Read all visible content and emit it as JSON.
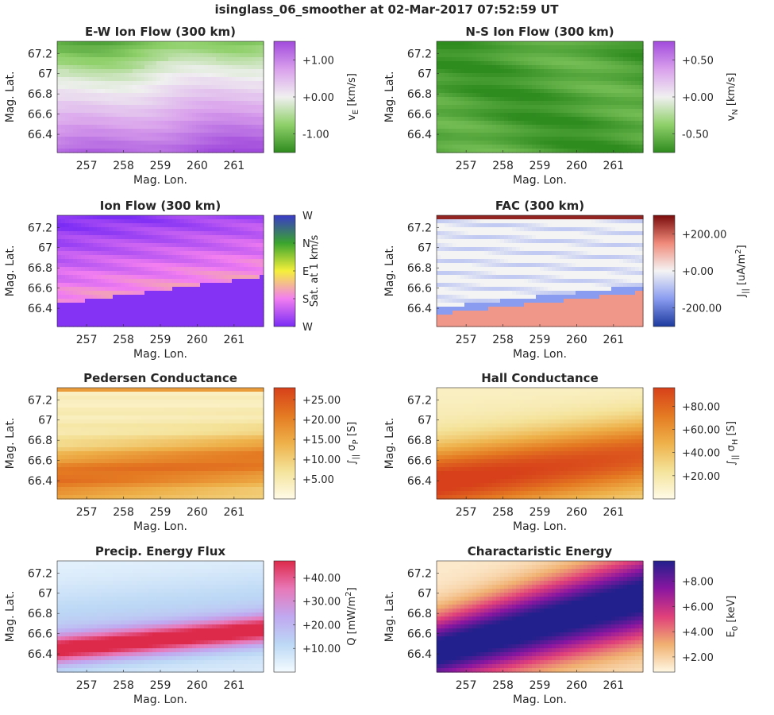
{
  "figure_title": "isinglass_06_smoother at 02-Mar-2017 07:52:59 UT",
  "chart_data": [
    {
      "type": "heatmap",
      "id": "ew",
      "title": "E-W Ion Flow (300 km)",
      "xlabel": "Mag. Lon.",
      "ylabel": "Mag. Lat.",
      "xlim": [
        256.2,
        261.8
      ],
      "ylim": [
        66.22,
        67.32
      ],
      "xticks": [
        "257",
        "258",
        "259",
        "260",
        "261"
      ],
      "yticks": [
        "66.4",
        "66.6",
        "66.8",
        "67",
        "67.2"
      ],
      "colorbar": {
        "label": "v_E [km/s]",
        "label_main": "v",
        "label_sub": "E",
        "label_rest": " [km/s]",
        "range": [
          -1.5,
          1.5
        ],
        "ticks": [
          "+1.00",
          "+0.00",
          "-1.00"
        ],
        "tick_values": [
          1.0,
          0.0,
          -1.0
        ],
        "colormap": [
          "#2e8b1e",
          "#8fd06a",
          "#f0f0f0",
          "#d9a0ec",
          "#a14bdc"
        ]
      }
    },
    {
      "type": "heatmap",
      "id": "ns",
      "title": "N-S Ion Flow (300 km)",
      "xlabel": "Mag. Lon.",
      "ylabel": "Mag. Lat.",
      "xlim": [
        256.2,
        261.8
      ],
      "ylim": [
        66.22,
        67.32
      ],
      "xticks": [
        "257",
        "258",
        "259",
        "260",
        "261"
      ],
      "yticks": [
        "66.4",
        "66.6",
        "66.8",
        "67",
        "67.2"
      ],
      "colorbar": {
        "label": "v_N [km/s]",
        "label_main": "v",
        "label_sub": "N",
        "label_rest": " [km/s]",
        "range": [
          -0.75,
          0.75
        ],
        "ticks": [
          "+0.50",
          "+0.00",
          "-0.50"
        ],
        "tick_values": [
          0.5,
          0.0,
          -0.5
        ],
        "colormap": [
          "#2e8b1e",
          "#8fd06a",
          "#f0f0f0",
          "#d9a0ec",
          "#a14bdc"
        ]
      }
    },
    {
      "type": "heatmap",
      "id": "flow",
      "title": "Ion Flow (300 km)",
      "xlabel": "Mag. Lon.",
      "ylabel": "Mag. Lat.",
      "xlim": [
        256.2,
        261.8
      ],
      "ylim": [
        66.22,
        67.32
      ],
      "xticks": [
        "257",
        "258",
        "259",
        "260",
        "261"
      ],
      "yticks": [
        "66.4",
        "66.6",
        "66.8",
        "67",
        "67.2"
      ],
      "colorbar": {
        "label": "Sat. at 1 km/s",
        "range": [
          0,
          1
        ],
        "ticks": [
          "W",
          "N",
          "E",
          "S",
          "W"
        ],
        "tick_values": [
          1,
          0.75,
          0.5,
          0.25,
          0
        ],
        "colormap": [
          "#7a2cf5",
          "#f27ef0",
          "#f5f03a",
          "#3aa52e",
          "#3a3ac8"
        ]
      }
    },
    {
      "type": "heatmap",
      "id": "fac",
      "title": "FAC (300 km)",
      "xlabel": "Mag. Lon.",
      "ylabel": "Mag. Lat.",
      "xlim": [
        256.2,
        261.8
      ],
      "ylim": [
        66.22,
        67.32
      ],
      "xticks": [
        "257",
        "258",
        "259",
        "260",
        "261"
      ],
      "yticks": [
        "66.4",
        "66.6",
        "66.8",
        "67",
        "67.2"
      ],
      "colorbar": {
        "label": "J_|| [uA/m^2]",
        "label_main": "J",
        "label_sub": "||",
        "label_rest": " [uA/m",
        "label_sup": "2",
        "label_end": "]",
        "range": [
          -300,
          300
        ],
        "ticks": [
          "+200.00",
          "+0.00",
          "-200.00"
        ],
        "tick_values": [
          200,
          0,
          -200
        ],
        "colormap": [
          "#1c3a9e",
          "#8a9cf0",
          "#f4f4f4",
          "#f08a7a",
          "#7a0c0c"
        ]
      }
    },
    {
      "type": "heatmap",
      "id": "ped",
      "title": "Pedersen Conductance",
      "xlabel": "Mag. Lon.",
      "ylabel": "Mag. Lat.",
      "xlim": [
        256.2,
        261.8
      ],
      "ylim": [
        66.22,
        67.32
      ],
      "xticks": [
        "257",
        "258",
        "259",
        "260",
        "261"
      ],
      "yticks": [
        "66.4",
        "66.6",
        "66.8",
        "67",
        "67.2"
      ],
      "colorbar": {
        "label": "∫_|| σ_P [S]",
        "label_main": "∫",
        "label_sub": "||",
        "label_rest": " σ",
        "label_sub2": "P",
        "label_end": " [S]",
        "range": [
          0,
          28
        ],
        "ticks": [
          "+25.00",
          "+20.00",
          "+15.00",
          "+10.00",
          "+5.00"
        ],
        "tick_values": [
          25,
          20,
          15,
          10,
          5
        ],
        "colormap": [
          "#fffbe8",
          "#f4e39a",
          "#eeb14a",
          "#e47a22",
          "#d7401a"
        ]
      }
    },
    {
      "type": "heatmap",
      "id": "hall",
      "title": "Hall Conductance",
      "xlabel": "Mag. Lon.",
      "ylabel": "Mag. Lat.",
      "xlim": [
        256.2,
        261.8
      ],
      "ylim": [
        66.22,
        67.32
      ],
      "xticks": [
        "257",
        "258",
        "259",
        "260",
        "261"
      ],
      "yticks": [
        "66.4",
        "66.6",
        "66.8",
        "67",
        "67.2"
      ],
      "colorbar": {
        "label": "∫_|| σ_H [S]",
        "label_main": "∫",
        "label_sub": "||",
        "label_rest": " σ",
        "label_sub2": "H",
        "label_end": " [S]",
        "range": [
          0,
          96
        ],
        "ticks": [
          "+80.00",
          "+60.00",
          "+40.00",
          "+20.00"
        ],
        "tick_values": [
          80,
          60,
          40,
          20
        ],
        "colormap": [
          "#fffbe8",
          "#f4e39a",
          "#eeb14a",
          "#e47a22",
          "#d7401a"
        ]
      }
    },
    {
      "type": "heatmap",
      "id": "q",
      "title": "Precip. Energy Flux",
      "xlabel": "Mag. Lon.",
      "ylabel": "Mag. Lat.",
      "xlim": [
        256.2,
        261.8
      ],
      "ylim": [
        66.22,
        67.32
      ],
      "xticks": [
        "257",
        "258",
        "259",
        "260",
        "261"
      ],
      "yticks": [
        "66.4",
        "66.6",
        "66.8",
        "67",
        "67.2"
      ],
      "colorbar": {
        "label": "Q [mW/m^2]",
        "label_main": "Q [mW/m",
        "label_sup": "2",
        "label_end": "]",
        "range": [
          0,
          47
        ],
        "ticks": [
          "+40.00",
          "+30.00",
          "+20.00",
          "+10.00"
        ],
        "tick_values": [
          40,
          30,
          20,
          10
        ],
        "colormap": [
          "#f4fbff",
          "#bcd8f5",
          "#c0a8f0",
          "#e878b8",
          "#dd2a4a"
        ]
      }
    },
    {
      "type": "heatmap",
      "id": "e0",
      "title": "Charactaristic Energy",
      "xlabel": "Mag. Lon.",
      "ylabel": "Mag. Lat.",
      "xlim": [
        256.2,
        261.8
      ],
      "ylim": [
        66.22,
        67.32
      ],
      "xticks": [
        "257",
        "258",
        "259",
        "260",
        "261"
      ],
      "yticks": [
        "66.4",
        "66.6",
        "66.8",
        "67",
        "67.2"
      ],
      "colorbar": {
        "label": "E_0 [keV]",
        "label_main": "E",
        "label_sub": "0",
        "label_rest": " [keV]",
        "range": [
          0.8,
          9.6
        ],
        "ticks": [
          "+8.00",
          "+6.00",
          "+4.00",
          "+2.00"
        ],
        "tick_values": [
          8,
          6,
          4,
          2
        ],
        "colormap": [
          "#fff8e4",
          "#f0b070",
          "#e0407a",
          "#8a16a0",
          "#22208c"
        ]
      }
    }
  ]
}
